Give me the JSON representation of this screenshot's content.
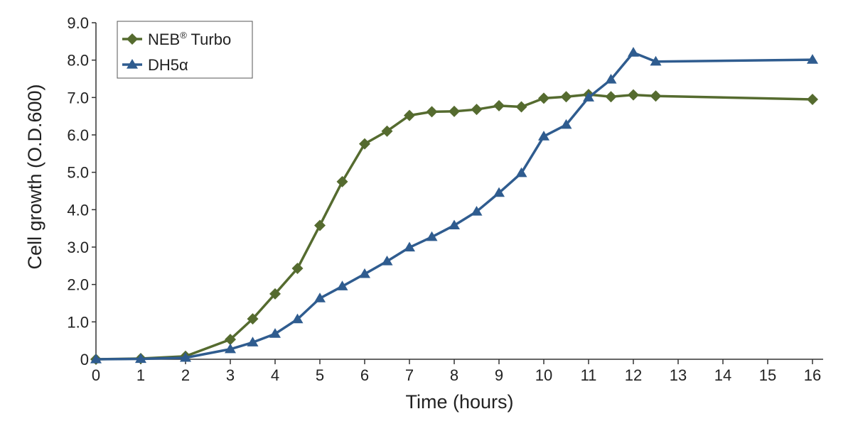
{
  "chart_data": {
    "type": "line",
    "title": "",
    "xlabel": "Time (hours)",
    "ylabel": "Cell growth (O.D.600)",
    "xlim": [
      0,
      16.25
    ],
    "ylim": [
      0,
      9.0
    ],
    "x_ticks": [
      0,
      1,
      2,
      3,
      4,
      5,
      6,
      7,
      8,
      9,
      10,
      11,
      12,
      13,
      14,
      15,
      16
    ],
    "x_tick_labels": [
      "0",
      "1",
      "2",
      "3",
      "4",
      "5",
      "6",
      "7",
      "8",
      "9",
      "10",
      "11",
      "12",
      "13",
      "14",
      "15",
      "16"
    ],
    "y_ticks": [
      0,
      1,
      2,
      3,
      4,
      5,
      6,
      7,
      8,
      9
    ],
    "y_tick_labels": [
      "0",
      "1.0",
      "2.0",
      "3.0",
      "4.0",
      "5.0",
      "6.0",
      "7.0",
      "8.0",
      "9.0"
    ],
    "grid": false,
    "legend_position": "top-left",
    "series": [
      {
        "name": "NEB",
        "name_superscript": "®",
        "name_suffix": " Turbo",
        "color": "#556B2F",
        "marker": "diamond",
        "x": [
          0,
          1,
          2,
          3,
          3.5,
          4,
          4.5,
          5,
          5.5,
          6,
          6.5,
          7,
          7.5,
          8,
          8.5,
          9,
          9.5,
          10,
          10.5,
          11,
          11.5,
          12,
          12.5,
          16
        ],
        "y": [
          0,
          0.02,
          0.08,
          0.53,
          1.08,
          1.75,
          2.43,
          3.58,
          4.75,
          5.76,
          6.1,
          6.52,
          6.62,
          6.63,
          6.68,
          6.78,
          6.75,
          6.98,
          7.02,
          7.08,
          7.02,
          7.07,
          7.04,
          6.95
        ]
      },
      {
        "name": "DH5α",
        "color": "#2F5C8F",
        "marker": "triangle",
        "x": [
          0,
          1,
          2,
          3,
          3.5,
          4,
          4.5,
          5,
          5.5,
          6,
          6.5,
          7,
          7.5,
          8,
          8.5,
          9,
          9.5,
          10,
          10.5,
          11,
          11.5,
          12,
          12.5,
          16
        ],
        "y": [
          0,
          0.01,
          0.04,
          0.27,
          0.45,
          0.68,
          1.07,
          1.63,
          1.95,
          2.28,
          2.62,
          2.99,
          3.27,
          3.58,
          3.95,
          4.45,
          4.98,
          5.96,
          6.27,
          7.0,
          7.48,
          8.2,
          7.96,
          8.01
        ]
      }
    ]
  }
}
